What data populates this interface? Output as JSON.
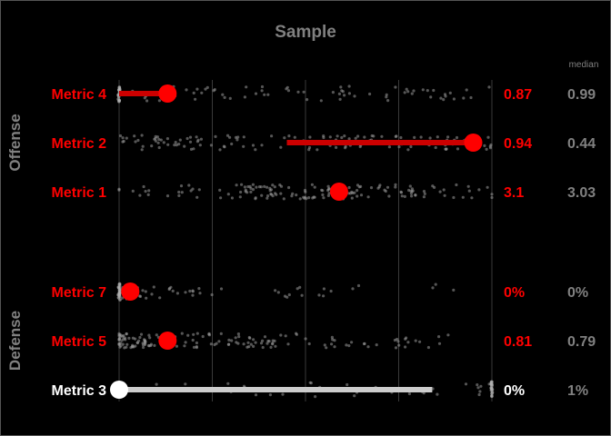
{
  "colors": {
    "background": "#000000",
    "highlight": "#ff0000",
    "neutral": "#ffffff",
    "muted": "#808080",
    "grid": "#3a3a3a",
    "bar_highlight": "#cc0000",
    "bar_neutral": "#cccccc"
  },
  "chart_data": {
    "type": "scatter",
    "title": "Sample",
    "median_header": "median",
    "xlim": [
      0,
      1
    ],
    "grid": true,
    "groups": [
      {
        "name": "Offense",
        "rows": [
          {
            "label": "Metric 4",
            "value_label": "0.87",
            "median_label": "0.99",
            "percentile": 0.13,
            "bar_from": 0.0,
            "highlight": true
          },
          {
            "label": "Metric 2",
            "value_label": "0.94",
            "median_label": "0.44",
            "percentile": 0.95,
            "bar_from": 0.45,
            "highlight": true
          },
          {
            "label": "Metric 1",
            "value_label": "3.1",
            "median_label": "3.03",
            "percentile": 0.59,
            "bar_from": null,
            "highlight": true
          }
        ]
      },
      {
        "name": "Defense",
        "rows": [
          {
            "label": "Metric 7",
            "value_label": "0%",
            "median_label": "0%",
            "percentile": 0.03,
            "bar_from": null,
            "highlight": true
          },
          {
            "label": "Metric 5",
            "value_label": "0.81",
            "median_label": "0.79",
            "percentile": 0.13,
            "bar_from": null,
            "highlight": true
          },
          {
            "label": "Metric 3",
            "value_label": "0%",
            "median_label": "1%",
            "percentile": 0.0,
            "bar_from": 0.84,
            "highlight": false
          }
        ]
      }
    ]
  }
}
